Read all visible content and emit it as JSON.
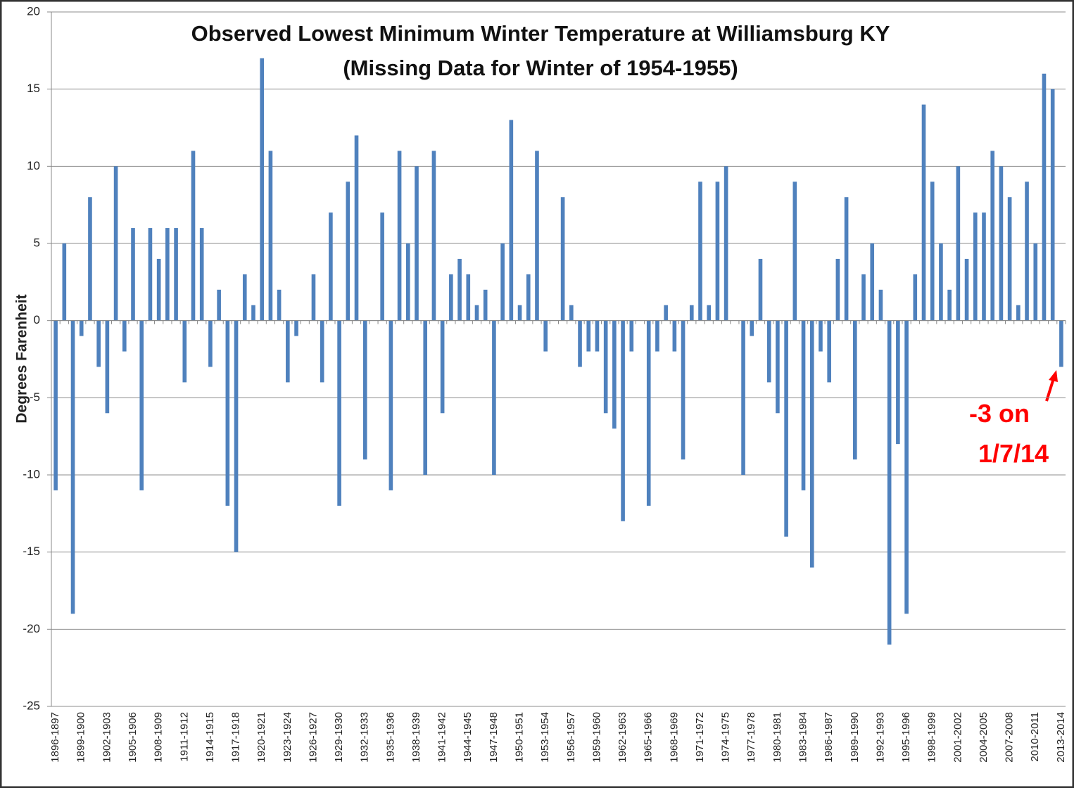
{
  "chart_data": {
    "type": "bar",
    "title": "Observed Lowest Minimum Winter Temperature at Williamsburg KY",
    "subtitle": "(Missing Data for Winter of 1954-1955)",
    "y_label": "Degrees Farenheit",
    "annotation": [
      "-3 on",
      "1/7/14"
    ],
    "color": "#4f81bd",
    "grid": true,
    "ylim": [
      -25,
      20
    ],
    "yticks": [
      -25,
      -20,
      -15,
      -10,
      -5,
      0,
      5,
      10,
      15,
      20
    ],
    "categories": [
      "1896-1897",
      null,
      null,
      "1899-1900",
      null,
      null,
      "1902-1903",
      null,
      null,
      "1905-1906",
      null,
      null,
      "1908-1909",
      null,
      null,
      "1911-1912",
      null,
      null,
      "1914-1915",
      null,
      null,
      "1917-1918",
      null,
      null,
      "1920-1921",
      null,
      null,
      "1923-1924",
      null,
      null,
      "1926-1927",
      null,
      null,
      "1929-1930",
      null,
      null,
      "1932-1933",
      null,
      null,
      "1935-1936",
      null,
      null,
      "1938-1939",
      null,
      null,
      "1941-1942",
      null,
      null,
      "1944-1945",
      null,
      null,
      "1947-1948",
      null,
      null,
      "1950-1951",
      null,
      null,
      "1953-1954",
      null,
      null,
      "1956-1957",
      null,
      null,
      "1959-1960",
      null,
      null,
      "1962-1963",
      null,
      null,
      "1965-1966",
      null,
      null,
      "1968-1969",
      null,
      null,
      "1971-1972",
      null,
      null,
      "1974-1975",
      null,
      null,
      "1977-1978",
      null,
      null,
      "1980-1981",
      null,
      null,
      "1983-1984",
      null,
      null,
      "1986-1987",
      null,
      null,
      "1989-1990",
      null,
      null,
      "1992-1993",
      null,
      null,
      "1995-1996",
      null,
      null,
      "1998-1999",
      null,
      null,
      "2001-2002",
      null,
      null,
      "2004-2005",
      null,
      null,
      "2007-2008",
      null,
      null,
      "2010-2011",
      null,
      null,
      "2013-2014"
    ],
    "values": [
      -11,
      5,
      -19,
      -1,
      8,
      -3,
      -6,
      10,
      -2,
      6,
      -11,
      6,
      4,
      6,
      6,
      -4,
      11,
      6,
      -3,
      2,
      -12,
      -15,
      3,
      1,
      17,
      11,
      2,
      -4,
      -1,
      0,
      3,
      -4,
      7,
      -12,
      9,
      12,
      -9,
      0,
      7,
      -11,
      11,
      5,
      10,
      -10,
      11,
      -6,
      3,
      4,
      3,
      1,
      2,
      -10,
      5,
      13,
      1,
      3,
      11,
      -2,
      null,
      8,
      1,
      -3,
      -2,
      -2,
      -6,
      -7,
      -13,
      -2,
      0,
      -12,
      -2,
      1,
      -2,
      -9,
      1,
      9,
      1,
      9,
      10,
      0,
      -10,
      -1,
      4,
      -4,
      -6,
      -14,
      9,
      -11,
      -16,
      -2,
      -4,
      4,
      8,
      -9,
      3,
      5,
      2,
      -21,
      -8,
      -19,
      3,
      14,
      9,
      5,
      2,
      10,
      4,
      7,
      7,
      11,
      10,
      8,
      1,
      9,
      5,
      16,
      15,
      -3
    ]
  }
}
